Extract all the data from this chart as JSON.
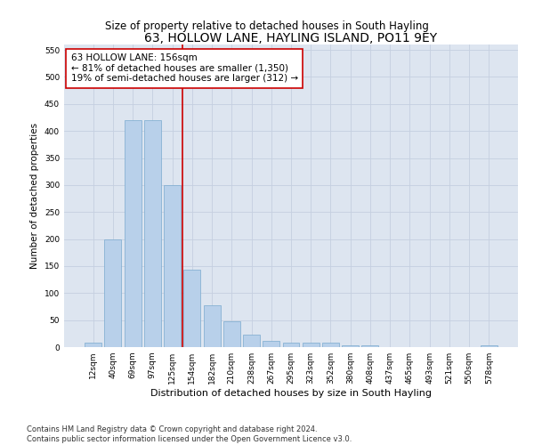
{
  "title": "63, HOLLOW LANE, HAYLING ISLAND, PO11 9EY",
  "subtitle": "Size of property relative to detached houses in South Hayling",
  "xlabel": "Distribution of detached houses by size in South Hayling",
  "ylabel": "Number of detached properties",
  "categories": [
    "12sqm",
    "40sqm",
    "69sqm",
    "97sqm",
    "125sqm",
    "154sqm",
    "182sqm",
    "210sqm",
    "238sqm",
    "267sqm",
    "295sqm",
    "323sqm",
    "352sqm",
    "380sqm",
    "408sqm",
    "437sqm",
    "465sqm",
    "493sqm",
    "521sqm",
    "550sqm",
    "578sqm"
  ],
  "values": [
    8,
    200,
    420,
    420,
    300,
    143,
    77,
    48,
    23,
    12,
    8,
    8,
    8,
    3,
    3,
    0,
    0,
    0,
    0,
    0,
    3
  ],
  "bar_color": "#b8d0ea",
  "bar_edge_color": "#7aaace",
  "vline_color": "#cc0000",
  "annotation_text": "63 HOLLOW LANE: 156sqm\n← 81% of detached houses are smaller (1,350)\n19% of semi-detached houses are larger (312) →",
  "annotation_box_color": "#ffffff",
  "annotation_box_edge_color": "#cc0000",
  "ylim": [
    0,
    560
  ],
  "yticks": [
    0,
    50,
    100,
    150,
    200,
    250,
    300,
    350,
    400,
    450,
    500,
    550
  ],
  "footnote": "Contains HM Land Registry data © Crown copyright and database right 2024.\nContains public sector information licensed under the Open Government Licence v3.0.",
  "title_fontsize": 10,
  "subtitle_fontsize": 8.5,
  "xlabel_fontsize": 8,
  "ylabel_fontsize": 7.5,
  "tick_fontsize": 6.5,
  "annotation_fontsize": 7.5,
  "footnote_fontsize": 6.0,
  "bg_color": "#dde5f0"
}
